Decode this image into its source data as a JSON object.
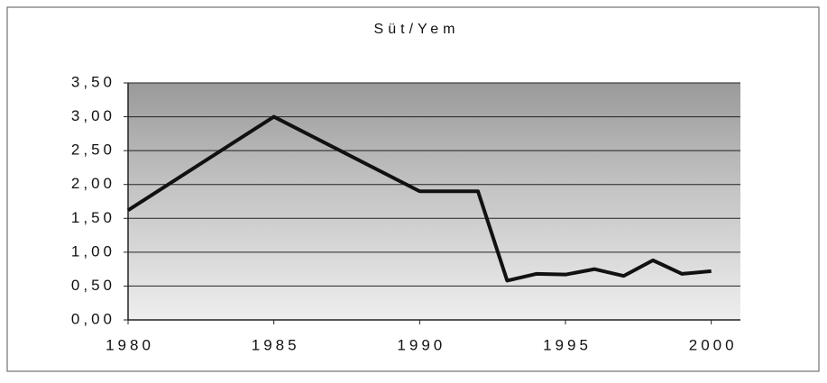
{
  "chart_data": {
    "type": "line",
    "title": "Süt/Yem",
    "x": [
      1980,
      1985,
      1990,
      1992,
      1993,
      1994,
      1995,
      1996,
      1997,
      1998,
      1999,
      2000
    ],
    "series": [
      {
        "name": "Süt/Yem",
        "color": "#111111",
        "values": [
          1.62,
          3.0,
          1.9,
          1.9,
          0.58,
          0.68,
          0.67,
          0.75,
          0.65,
          0.88,
          0.68,
          0.72
        ]
      }
    ],
    "xlim": [
      1980,
      2001
    ],
    "xticks": [
      1980,
      1985,
      1990,
      1995,
      2000
    ],
    "ylim": [
      0,
      3.5
    ],
    "yticks": [
      {
        "value": 0,
        "label": "0,00"
      },
      {
        "value": 0.5,
        "label": "0,50"
      },
      {
        "value": 1,
        "label": "1,00"
      },
      {
        "value": 1.5,
        "label": "1,50"
      },
      {
        "value": 2,
        "label": "2,00"
      },
      {
        "value": 2.5,
        "label": "2,50"
      },
      {
        "value": 3,
        "label": "3,00"
      },
      {
        "value": 3.5,
        "label": "3,50"
      }
    ],
    "grid": true
  }
}
